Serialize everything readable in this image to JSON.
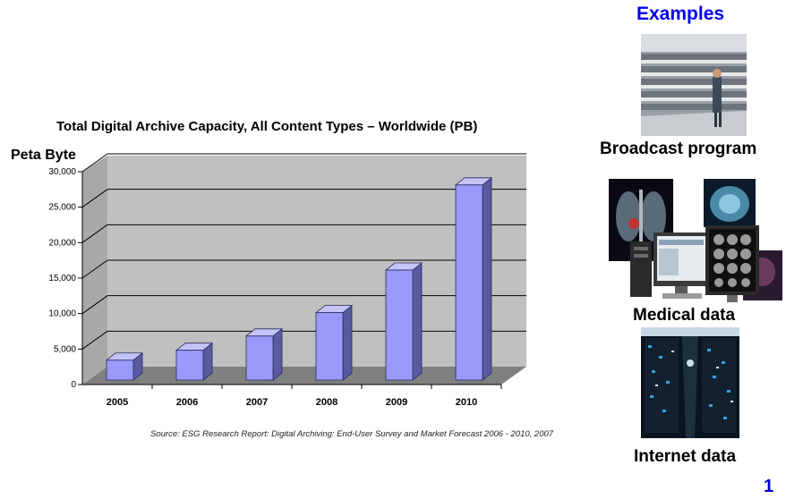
{
  "chart_data": {
    "type": "bar",
    "title": "Total Digital Archive Capacity, All Content Types – Worldwide (PB)",
    "ylabel": "Peta Byte",
    "xlabel": "",
    "categories": [
      "2005",
      "2006",
      "2007",
      "2008",
      "2009",
      "2010"
    ],
    "values": [
      2800,
      4200,
      6200,
      9500,
      15500,
      27500
    ],
    "ylim": [
      0,
      30000
    ],
    "yticks": [
      0,
      5000,
      10000,
      15000,
      20000,
      25000,
      30000
    ],
    "ytick_labels": [
      "0",
      "5,000",
      "10,000",
      "15,000",
      "20,000",
      "25,000",
      "30,000"
    ],
    "grid": true,
    "three_d": true,
    "legend": "none",
    "colors": {
      "bar_front": "#9a9afa",
      "bar_side": "#5a5aa0",
      "bar_top": "#c4c4f8",
      "wall": "#c0c0c0",
      "floor": "#808080"
    },
    "source": "Source: ESG Research Report: Digital Archiving: End-User Survey and Market Forecast 2006 - 2010, 2007"
  },
  "examples": {
    "heading": "Examples",
    "items": [
      {
        "label": "Broadcast program",
        "icon": "tape-library-photo"
      },
      {
        "label": "Medical data",
        "icon": "medical-imaging-photo"
      },
      {
        "label": "Internet data",
        "icon": "server-room-photo"
      }
    ]
  },
  "slide_number": "1"
}
